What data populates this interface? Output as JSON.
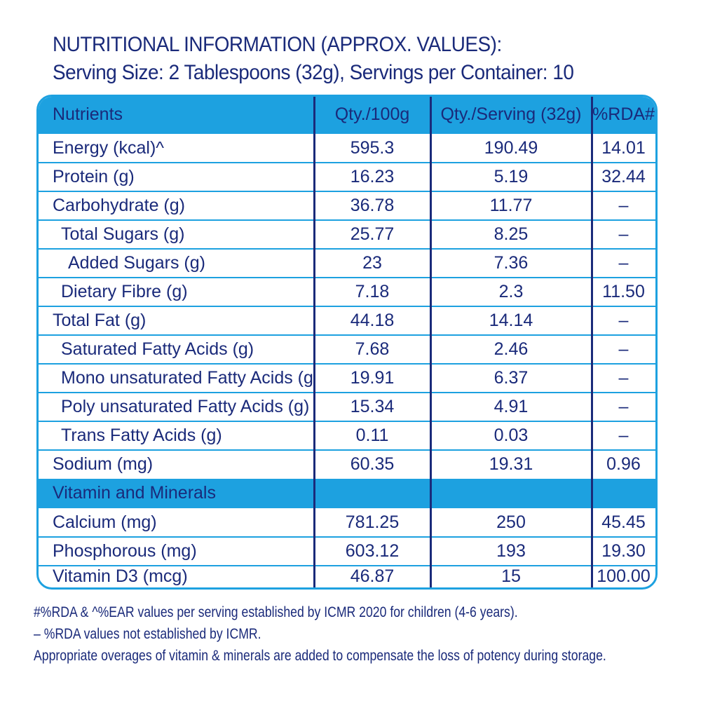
{
  "header": {
    "title": "NUTRITIONAL INFORMATION (APPROX. VALUES):",
    "serving": "Serving Size: 2 Tablespoons (32g), Servings per Container: 10"
  },
  "table": {
    "columns": [
      "Nutrients",
      "Qty./100g",
      "Qty./Serving (32g)",
      "%RDA#"
    ],
    "rows": [
      {
        "name": "Energy (kcal)^",
        "per100": "595.3",
        "serving": "190.49",
        "rda": "14.01"
      },
      {
        "name": "Protein (g)",
        "per100": "16.23",
        "serving": "5.19",
        "rda": "32.44"
      },
      {
        "name": "Carbohydrate (g)",
        "per100": "36.78",
        "serving": "11.77",
        "rda": "–"
      },
      {
        "name": "Total Sugars (g)",
        "per100": "25.77",
        "serving": "8.25",
        "rda": "–"
      },
      {
        "name": "Added Sugars (g)",
        "per100": "23",
        "serving": "7.36",
        "rda": "–"
      },
      {
        "name": "Dietary Fibre (g)",
        "per100": "7.18",
        "serving": "2.3",
        "rda": "11.50"
      },
      {
        "name": "Total Fat (g)",
        "per100": "44.18",
        "serving": "14.14",
        "rda": "–"
      },
      {
        "name": "Saturated Fatty Acids (g)",
        "per100": "7.68",
        "serving": "2.46",
        "rda": "–"
      },
      {
        "name": "Mono unsaturated Fatty Acids (g)",
        "per100": "19.91",
        "serving": "6.37",
        "rda": "–"
      },
      {
        "name": "Poly unsaturated Fatty Acids (g)",
        "per100": "15.34",
        "serving": "4.91",
        "rda": "–"
      },
      {
        "name": "Trans Fatty Acids (g)",
        "per100": "0.11",
        "serving": "0.03",
        "rda": "–"
      },
      {
        "name": "Sodium (mg)",
        "per100": "60.35",
        "serving": "19.31",
        "rda": "0.96"
      }
    ],
    "section": "Vitamin and Minerals",
    "minerals": [
      {
        "name": "Calcium (mg)",
        "per100": "781.25",
        "serving": "250",
        "rda": "45.45"
      },
      {
        "name": "Phosphorous (mg)",
        "per100": "603.12",
        "serving": "193",
        "rda": "19.30"
      },
      {
        "name": "Vitamin D3 (mcg)",
        "per100": "46.87",
        "serving": "15",
        "rda": "100.00"
      }
    ]
  },
  "footnotes": [
    "#%RDA & ^%EAR values per serving established by ICMR 2020 for children (4-6 years).",
    "– %RDA values not established by ICMR.",
    "Appropriate overages of vitamin & minerals are added to compensate the loss of potency during storage."
  ],
  "colors": {
    "accent": "#1da1e0",
    "text": "#1a2a7a"
  }
}
